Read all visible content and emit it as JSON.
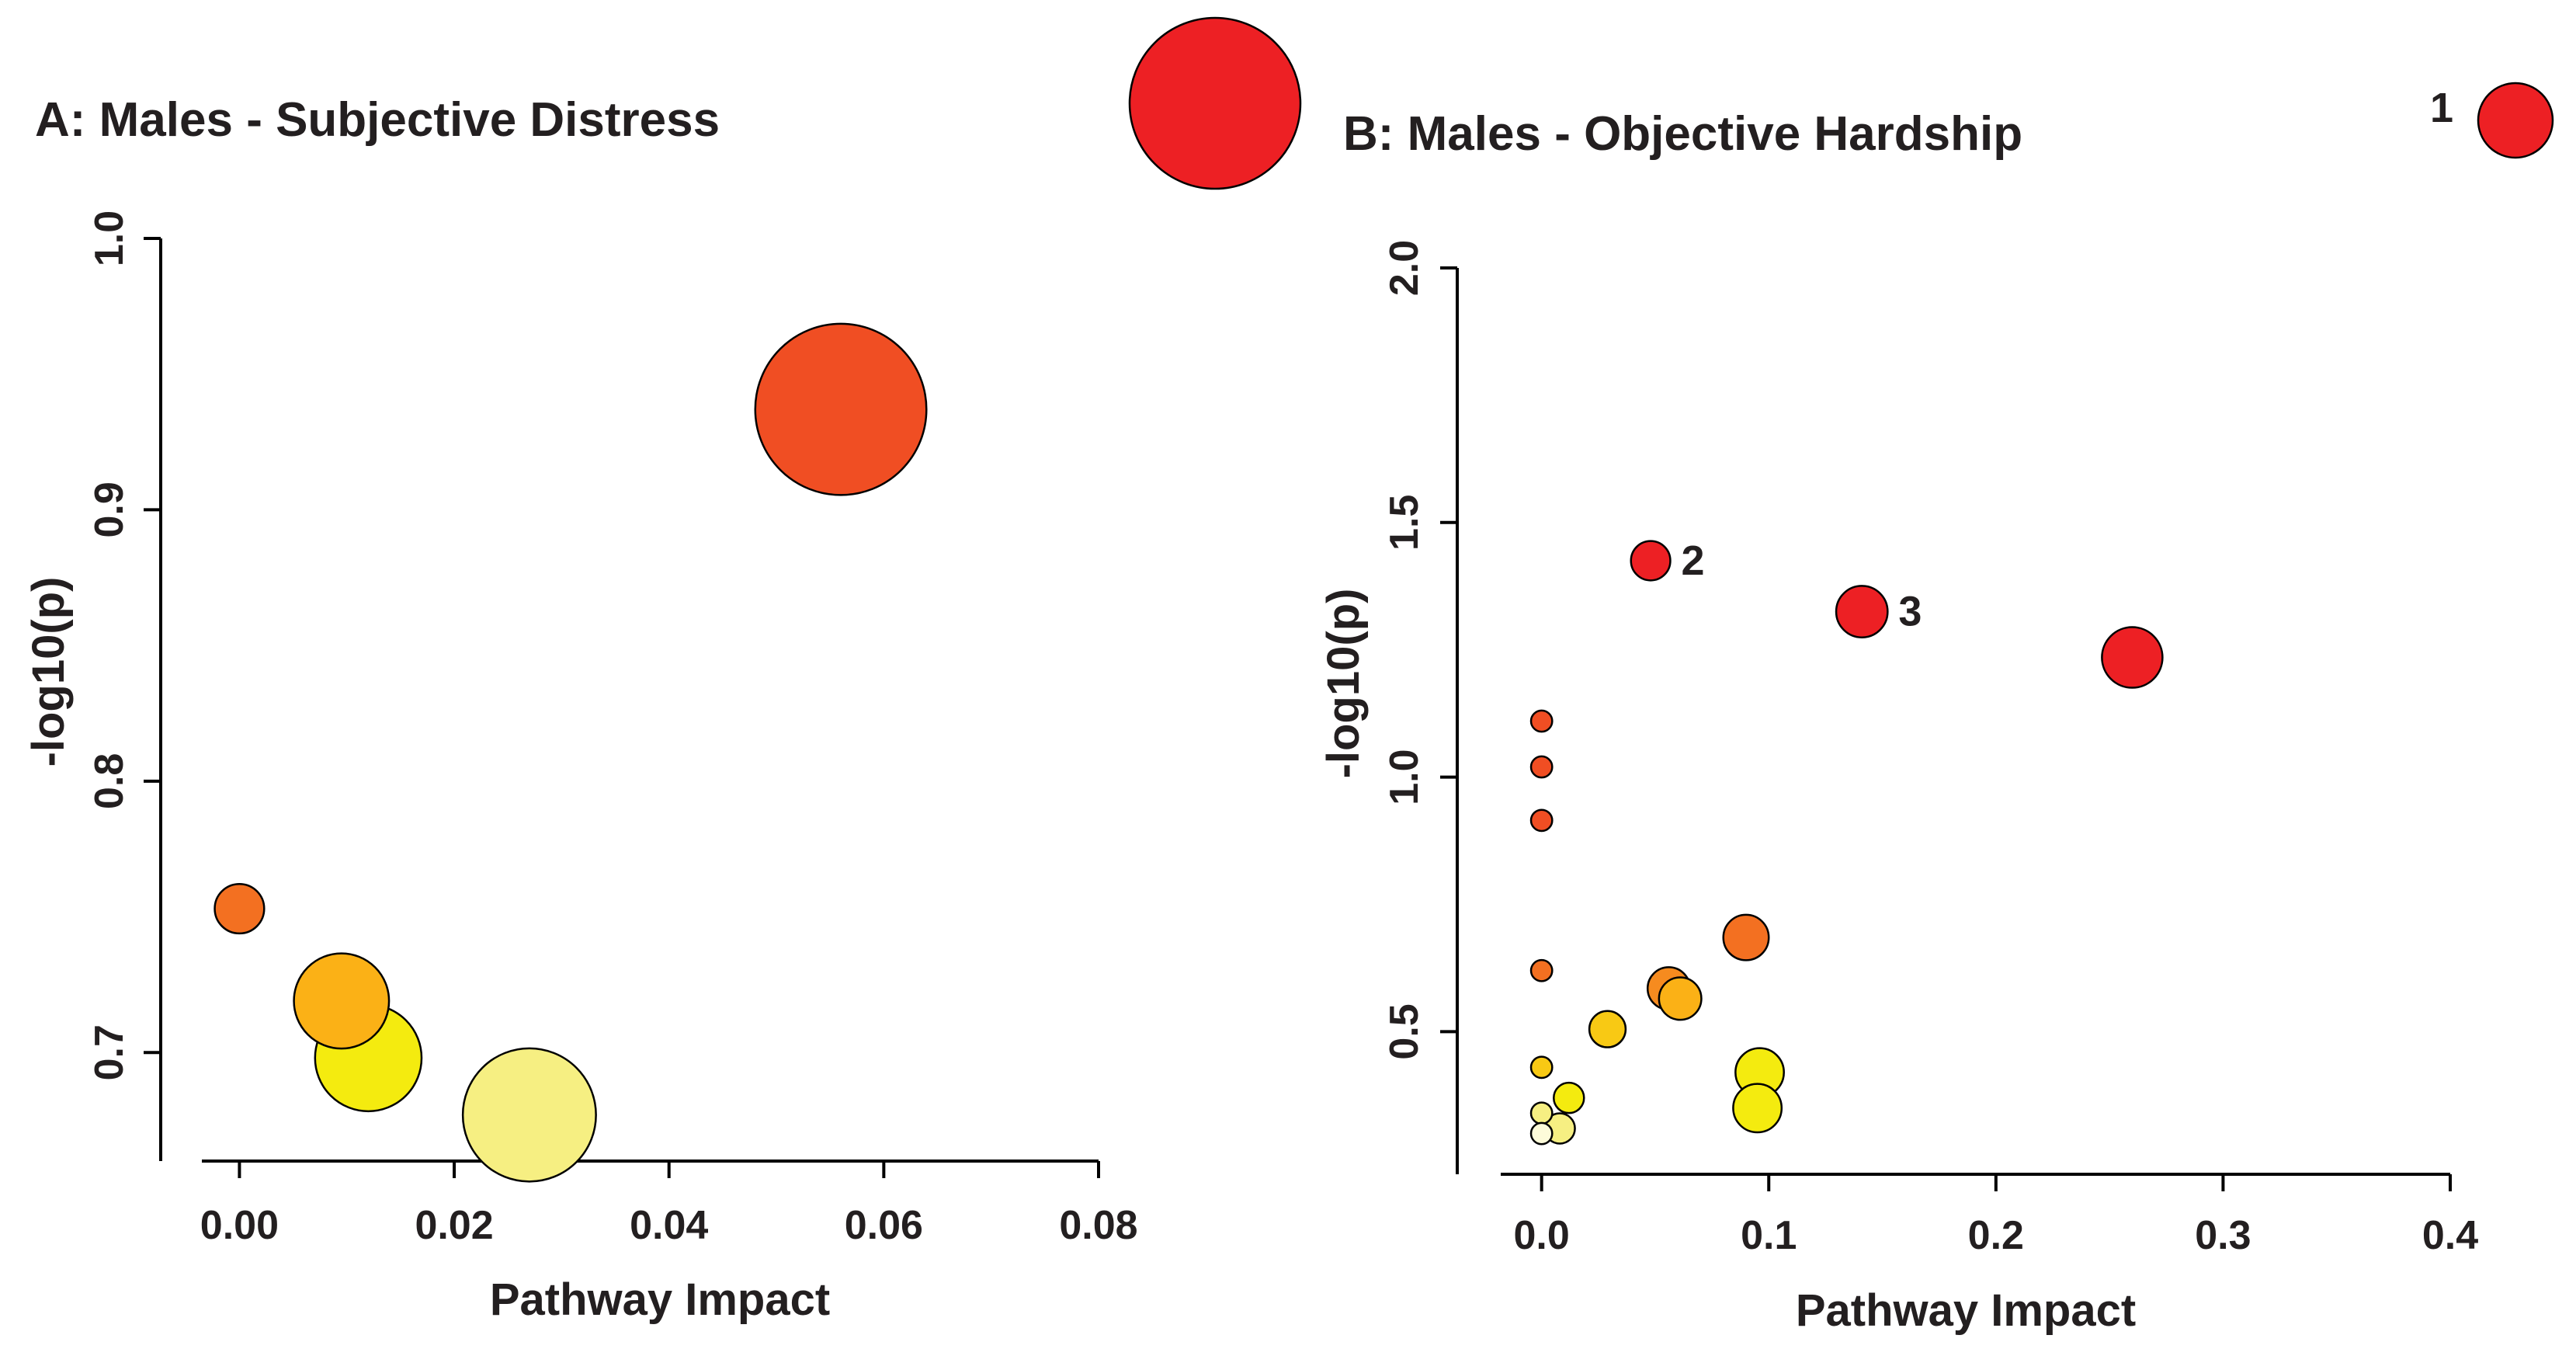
{
  "colors": {
    "red": "#ed2024",
    "red_orange": "#f04e23",
    "orange": "#f37021",
    "orange_light": "#f68b1f",
    "amber": "#fbb116",
    "gold": "#f8c914",
    "yellow": "#f4eb0f",
    "pale_yellow": "#f6ef82",
    "cream": "#fdfbd9"
  },
  "chart_data": [
    {
      "type": "scatter",
      "title_prefix": "A: Males - ",
      "title_main": "Subjective Distress",
      "xlabel": "Pathway Impact",
      "ylabel": "-log10(p)",
      "xlim": [
        -0.0035,
        0.08
      ],
      "ylim": [
        0.66,
        1.0
      ],
      "xticks": [
        0,
        0.02,
        0.04,
        0.06,
        0.08
      ],
      "xtick_labels": [
        "0.00",
        "0.02",
        "0.04",
        "0.06",
        "0.08"
      ],
      "yticks": [
        0.7,
        0.8,
        0.9,
        1.0
      ],
      "ytick_labels": [
        "0.7",
        "0.8",
        "0.9",
        "1.0"
      ],
      "points": [
        {
          "x": 0.056,
          "y": 0.937,
          "size": 45,
          "color": "red_orange"
        },
        {
          "x": 0.0,
          "y": 0.753,
          "size": 13,
          "color": "orange"
        },
        {
          "x": 0.0095,
          "y": 0.719,
          "size": 25,
          "color": "amber"
        },
        {
          "x": 0.012,
          "y": 0.698,
          "size": 28,
          "color": "yellow"
        },
        {
          "x": 0.027,
          "y": 0.677,
          "size": 35,
          "color": "pale_yellow"
        }
      ],
      "annotations": []
    },
    {
      "type": "scatter",
      "title_prefix": "B: Males - ",
      "title_main": "Objective Hardship",
      "xlabel": "Pathway Impact",
      "ylabel": "-log10(p)",
      "xlim": [
        -0.018,
        0.4
      ],
      "ylim": [
        0.22,
        2.0
      ],
      "xticks": [
        0,
        0.1,
        0.2,
        0.3,
        0.4
      ],
      "xtick_labels": [
        "0.0",
        "0.1",
        "0.2",
        "0.3",
        "0.4"
      ],
      "yticks": [
        0.5,
        1.0,
        1.5,
        2.0
      ],
      "ytick_labels": [
        "0.5",
        "1.0",
        "1.5",
        "2.0"
      ],
      "points": [
        {
          "x": 0.048,
          "y": 1.425,
          "size": 13,
          "color": "red"
        },
        {
          "x": 0.141,
          "y": 1.325,
          "size": 17,
          "color": "red"
        },
        {
          "x": 0.26,
          "y": 1.235,
          "size": 20,
          "color": "red"
        },
        {
          "x": 0.0,
          "y": 1.11,
          "size": 7,
          "color": "red_orange"
        },
        {
          "x": 0.0,
          "y": 1.02,
          "size": 7,
          "color": "red_orange"
        },
        {
          "x": 0.0,
          "y": 0.915,
          "size": 7,
          "color": "red_orange"
        },
        {
          "x": 0.0,
          "y": 0.62,
          "size": 7,
          "color": "orange"
        },
        {
          "x": 0.09,
          "y": 0.685,
          "size": 15,
          "color": "orange"
        },
        {
          "x": 0.056,
          "y": 0.585,
          "size": 14,
          "color": "orange_light"
        },
        {
          "x": 0.061,
          "y": 0.565,
          "size": 14,
          "color": "amber"
        },
        {
          "x": 0.029,
          "y": 0.505,
          "size": 12,
          "color": "gold"
        },
        {
          "x": 0.0,
          "y": 0.43,
          "size": 7,
          "color": "gold"
        },
        {
          "x": 0.096,
          "y": 0.42,
          "size": 16,
          "color": "yellow"
        },
        {
          "x": 0.095,
          "y": 0.35,
          "size": 16,
          "color": "yellow"
        },
        {
          "x": 0.012,
          "y": 0.37,
          "size": 10,
          "color": "yellow"
        },
        {
          "x": 0.0,
          "y": 0.34,
          "size": 7,
          "color": "pale_yellow"
        },
        {
          "x": 0.008,
          "y": 0.31,
          "size": 10,
          "color": "pale_yellow"
        },
        {
          "x": 0.0,
          "y": 0.3,
          "size": 7,
          "color": "cream"
        }
      ],
      "annotations": [
        {
          "text": "2",
          "point_index": 0
        },
        {
          "text": "3",
          "point_index": 1
        }
      ]
    }
  ],
  "overflow_markers": [
    {
      "label": "",
      "color": "red",
      "size": 55
    },
    {
      "label": "1",
      "color": "red",
      "size": 24
    }
  ]
}
